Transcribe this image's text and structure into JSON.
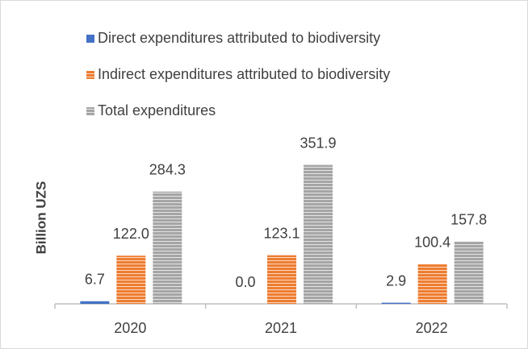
{
  "chart_data": {
    "type": "bar",
    "y_label": "Billion UZS",
    "categories": [
      "2020",
      "2021",
      "2022"
    ],
    "series": [
      {
        "name": "Direct expenditures attributed to biodiversity",
        "color": "#4472c4",
        "values": [
          6.7,
          0.0,
          2.9
        ],
        "value_labels": [
          "6.7",
          "0.0",
          "2.9"
        ]
      },
      {
        "name": "Indirect expenditures attributed to biodiversity",
        "color": "#ed7d31",
        "values": [
          122.0,
          123.1,
          100.4
        ],
        "value_labels": [
          "122.0",
          "123.1",
          "100.4"
        ]
      },
      {
        "name": "Total expenditures",
        "color": "#a5a5a5",
        "values": [
          284.3,
          351.9,
          157.8
        ],
        "value_labels": [
          "284.3",
          "351.9",
          "157.8"
        ]
      }
    ],
    "ylim": [
      0,
      400
    ],
    "legend": "top-left"
  }
}
